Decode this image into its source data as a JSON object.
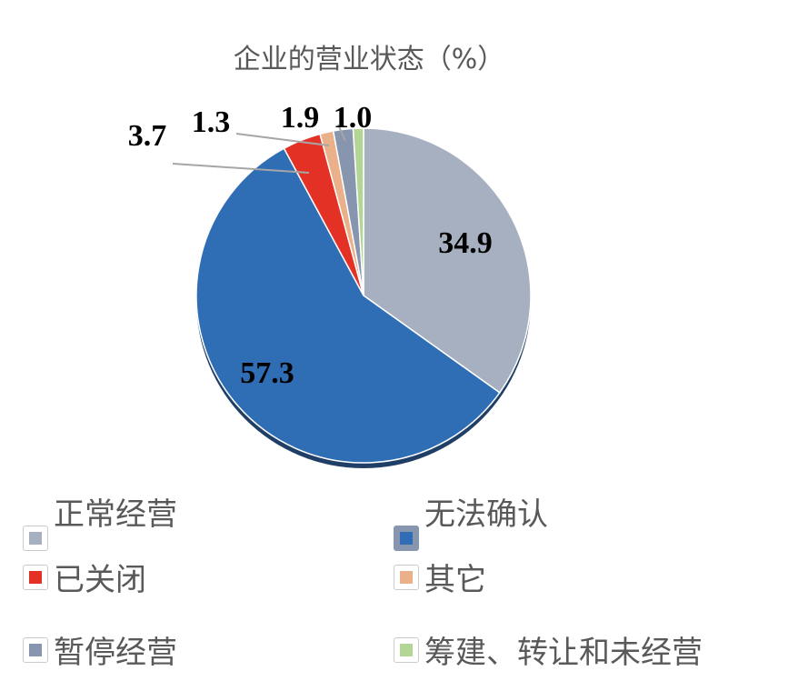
{
  "chart_data": {
    "type": "pie",
    "title": "企业的营业状态（%）",
    "start": "top",
    "direction": "clockwise",
    "slices": [
      {
        "label": "正常经营",
        "value": 34.9,
        "color": "#a7b0c0"
      },
      {
        "label": "无法确认",
        "value": 57.3,
        "color": "#2f6db5"
      },
      {
        "label": "已关闭",
        "value": 3.7,
        "color": "#e33125"
      },
      {
        "label": "其它",
        "value": 1.3,
        "color": "#eab08a"
      },
      {
        "label": "暂停经营",
        "value": 1.9,
        "color": "#8796ae"
      },
      {
        "label": "筹建、转让和未经营",
        "value": 1.0,
        "color": "#b3d595"
      }
    ],
    "data_labels": [
      "34.9",
      "57.3",
      "3.7",
      "1.3",
      "1.9",
      "1.0"
    ],
    "legend_placement": "bottom"
  }
}
